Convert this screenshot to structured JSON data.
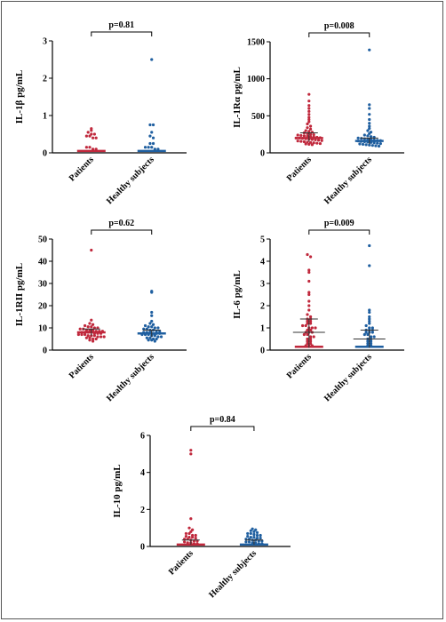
{
  "colors": {
    "patients": "#c0283c",
    "healthy": "#1f5fa0",
    "axis": "#000000"
  },
  "chart_data": [
    {
      "type": "scatter",
      "ylabel": "IL-1β pg/mL",
      "ylim": [
        0,
        3
      ],
      "yticks": [
        "0",
        "1",
        "2",
        "3"
      ],
      "categories": [
        "Patients",
        "Healthy subjects"
      ],
      "p_value": "p=0.81",
      "series": [
        {
          "name": "Patients",
          "median": 0.05,
          "iqr": [
            0.05,
            0.05
          ],
          "values": [
            0.65,
            0.6,
            0.55,
            0.5,
            0.5,
            0.45,
            0.45,
            0.4,
            0.4,
            0.15,
            0.15,
            0.1,
            0.1
          ]
        },
        {
          "name": "Healthy subjects",
          "median": 0.05,
          "iqr": [
            0.05,
            0.05
          ],
          "values": [
            2.5,
            0.75,
            0.75,
            0.55,
            0.45,
            0.4,
            0.25,
            0.25,
            0.15,
            0.15,
            0.15,
            0.1,
            0.1
          ]
        }
      ]
    },
    {
      "type": "scatter",
      "ylabel": "IL-1Rα pg/mL",
      "ylim": [
        0,
        1500
      ],
      "yticks": [
        "0",
        "500",
        "1000",
        "1500"
      ],
      "categories": [
        "Patients",
        "Healthy subjects"
      ],
      "p_value": "p=0.008",
      "series": [
        {
          "name": "Patients",
          "median": 200,
          "iqr": [
            150,
            270
          ],
          "values": [
            790,
            700,
            640,
            600,
            560,
            520,
            480,
            450,
            420,
            390,
            360,
            340,
            320,
            300,
            290,
            280,
            270,
            260,
            250,
            245,
            240,
            235,
            230,
            225,
            220,
            215,
            210,
            205,
            200,
            200,
            195,
            190,
            185,
            180,
            175,
            170,
            165,
            160,
            155,
            150,
            145,
            140,
            135,
            130,
            125,
            120,
            115,
            110
          ]
        },
        {
          "name": "Healthy subjects",
          "median": 160,
          "iqr": [
            120,
            200
          ],
          "values": [
            1390,
            650,
            600,
            520,
            450,
            400,
            360,
            330,
            300,
            280,
            260,
            240,
            230,
            220,
            210,
            200,
            195,
            190,
            185,
            180,
            175,
            170,
            165,
            160,
            155,
            150,
            145,
            140,
            135,
            130,
            125,
            120,
            115,
            110,
            105,
            100,
            95,
            90
          ]
        }
      ]
    },
    {
      "type": "scatter",
      "ylabel": "IL-1RII pg/mL",
      "ylim": [
        0,
        50
      ],
      "yticks": [
        "0",
        "10",
        "20",
        "30",
        "40",
        "50"
      ],
      "categories": [
        "Patients",
        "Healthy subjects"
      ],
      "p_value": "p=0.62",
      "series": [
        {
          "name": "Patients",
          "median": 8,
          "iqr": [
            6.5,
            9.5
          ],
          "values": [
            45,
            13.5,
            12,
            11.5,
            11,
            10.5,
            10.5,
            10,
            10,
            9.5,
            9.5,
            9,
            9,
            9,
            8.5,
            8.5,
            8.5,
            8,
            8,
            8,
            8,
            7.5,
            7.5,
            7.5,
            7,
            7,
            7,
            6.5,
            6.5,
            6.5,
            6,
            6,
            6,
            5.5,
            5.5,
            5,
            5,
            4.5,
            4
          ]
        },
        {
          "name": "Healthy subjects",
          "median": 7.5,
          "iqr": [
            6,
            9
          ],
          "values": [
            26.5,
            26,
            17,
            15.5,
            13,
            12,
            11.5,
            11,
            10.5,
            10.5,
            10,
            10,
            9.5,
            9.5,
            9,
            9,
            8.5,
            8.5,
            8,
            8,
            8,
            7.5,
            7.5,
            7.5,
            7,
            7,
            7,
            6.5,
            6.5,
            6,
            6,
            5.5,
            5.5,
            5,
            5,
            4.5,
            4.5,
            4
          ]
        }
      ]
    },
    {
      "type": "scatter",
      "ylabel": "IL-6 pg/mL",
      "ylim": [
        0,
        5
      ],
      "yticks": [
        "0",
        "1",
        "2",
        "3",
        "4",
        "5"
      ],
      "categories": [
        "Patients",
        "Healthy subjects"
      ],
      "p_value": "p=0.009",
      "series": [
        {
          "name": "Patients",
          "median": 0.15,
          "iqr": [
            0.1,
            1.4
          ],
          "mean_line": 0.8,
          "values": [
            4.3,
            4.2,
            3.6,
            3.5,
            3.1,
            2.6,
            2.5,
            2.2,
            2.0,
            1.8,
            1.6,
            1.5,
            1.4,
            1.4,
            1.3,
            1.3,
            1.2,
            1.2,
            1.1,
            1.1,
            1.0,
            1.0,
            1.0,
            0.9,
            0.9,
            0.8,
            0.8,
            0.8,
            0.7,
            0.7,
            0.6,
            0.6,
            0.5,
            0.5,
            0.4,
            0.4,
            0.3,
            0.3,
            0.2,
            0.2,
            0.2
          ]
        },
        {
          "name": "Healthy subjects",
          "median": 0.15,
          "iqr": [
            0.1,
            0.9
          ],
          "mean_line": 0.5,
          "values": [
            4.7,
            3.8,
            1.8,
            1.7,
            1.5,
            1.4,
            1.3,
            1.2,
            1.1,
            1.0,
            1.0,
            0.9,
            0.9,
            0.9,
            0.8,
            0.8,
            0.8,
            0.7,
            0.7,
            0.6,
            0.6,
            0.5,
            0.5,
            0.4,
            0.4,
            0.3,
            0.3,
            0.2,
            0.2
          ]
        }
      ]
    },
    {
      "type": "scatter",
      "ylabel": "IL-10 pg/mL",
      "ylim": [
        0,
        6
      ],
      "yticks": [
        "0",
        "2",
        "4",
        "6"
      ],
      "categories": [
        "Patients",
        "Healthy subjects"
      ],
      "p_value": "p=0.84",
      "series": [
        {
          "name": "Patients",
          "median": 0.1,
          "iqr": [
            0.1,
            0.35
          ],
          "values": [
            5.2,
            5.0,
            1.5,
            1.0,
            0.9,
            0.8,
            0.7,
            0.7,
            0.6,
            0.6,
            0.55,
            0.5,
            0.5,
            0.45,
            0.4,
            0.4,
            0.35,
            0.3,
            0.3,
            0.25,
            0.2,
            0.2,
            0.15,
            0.15
          ]
        },
        {
          "name": "Healthy subjects",
          "median": 0.1,
          "iqr": [
            0.1,
            0.35
          ],
          "values": [
            0.95,
            0.9,
            0.85,
            0.8,
            0.75,
            0.7,
            0.7,
            0.65,
            0.6,
            0.6,
            0.55,
            0.5,
            0.5,
            0.45,
            0.45,
            0.4,
            0.4,
            0.35,
            0.35,
            0.3,
            0.3,
            0.25,
            0.25,
            0.2,
            0.2,
            0.15,
            0.15
          ]
        }
      ]
    }
  ]
}
